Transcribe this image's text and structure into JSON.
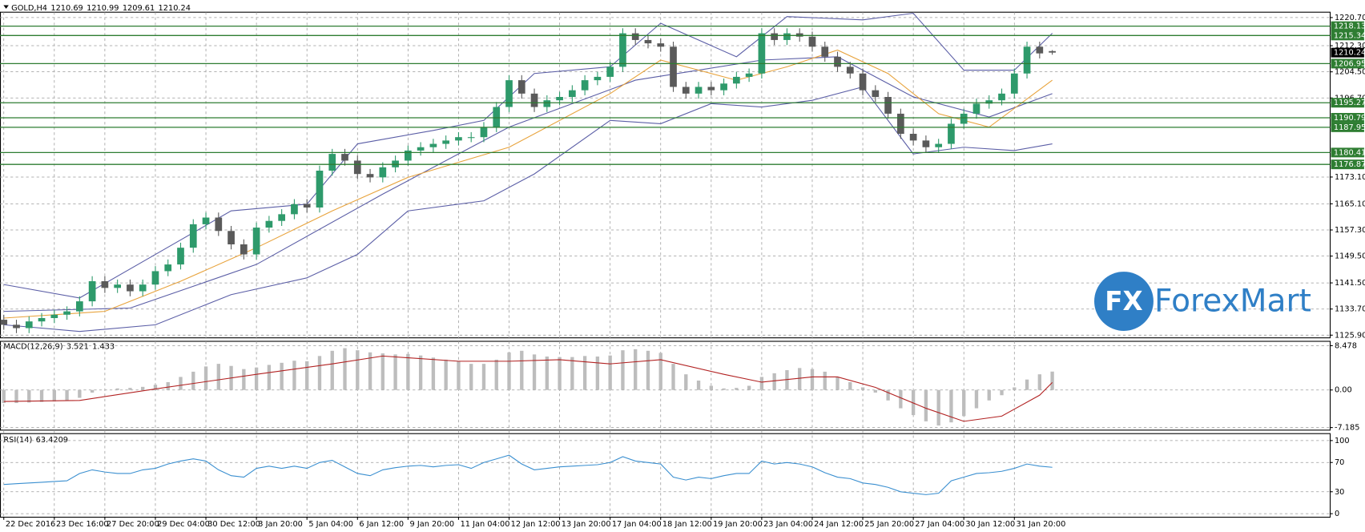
{
  "chart_data": [
    {
      "type": "candlestick",
      "title": "GOLD,H4",
      "candles": {
        "open": [
          1130.5,
          1129,
          1128,
          1130,
          1131,
          1132,
          1133,
          1136,
          1142,
          1140,
          1141,
          1139,
          1141,
          1145,
          1147,
          1152,
          1159,
          1161,
          1157,
          1153,
          1150,
          1158,
          1160,
          1162,
          1165,
          1164,
          1175,
          1180,
          1178,
          1174,
          1173,
          1176,
          1178,
          1181,
          1182,
          1183,
          1184,
          1185,
          1185,
          1188,
          1194,
          1202,
          1198,
          1194,
          1196,
          1197,
          1199,
          1202,
          1203,
          1206,
          1216,
          1214,
          1213,
          1212,
          1200,
          1198,
          1200,
          1199,
          1201,
          1203,
          1204,
          1216,
          1214,
          1216,
          1215,
          1212,
          1209,
          1206,
          1204,
          1199,
          1197,
          1192,
          1186,
          1184,
          1182,
          1183,
          1189,
          1192,
          1195,
          1196,
          1198,
          1204,
          1212,
          1210.69
        ],
        "high": [
          1132,
          1130.5,
          1131.5,
          1132.5,
          1133.5,
          1134.5,
          1137.5,
          1143.5,
          1143.5,
          1142.5,
          1142.5,
          1142.5,
          1146.5,
          1148.5,
          1153.5,
          1160.5,
          1162.5,
          1162.5,
          1158.5,
          1154.5,
          1159.5,
          1161.5,
          1163.5,
          1166.5,
          1166.5,
          1176.5,
          1181.5,
          1181.5,
          1179.5,
          1175.5,
          1177.5,
          1179.5,
          1182.5,
          1183.5,
          1184.5,
          1185.5,
          1186.5,
          1186.5,
          1189.5,
          1195.5,
          1203.5,
          1203.5,
          1199.5,
          1197.5,
          1198.5,
          1200.5,
          1203.5,
          1204.5,
          1207.5,
          1217.5,
          1217.5,
          1215.5,
          1214.5,
          1213.5,
          1201.5,
          1201.5,
          1201.5,
          1202.5,
          1204.5,
          1205.5,
          1217.5,
          1217.5,
          1217.5,
          1217.5,
          1216.5,
          1213.5,
          1210.5,
          1207.5,
          1205.5,
          1200.5,
          1198.5,
          1193.5,
          1187.5,
          1185.5,
          1184.5,
          1190.5,
          1193.5,
          1196.5,
          1197.5,
          1199.5,
          1205.5,
          1213.5,
          1213.5,
          1210.99
        ],
        "low": [
          1127.5,
          1126.5,
          1126.5,
          1128.5,
          1129.5,
          1130.5,
          1131.5,
          1134.5,
          1138.5,
          1138.5,
          1137.5,
          1137.5,
          1139.5,
          1143.5,
          1145.5,
          1150.5,
          1157.5,
          1155.5,
          1151.5,
          1148.5,
          1148.5,
          1156.5,
          1158.5,
          1160.5,
          1162.5,
          1162.5,
          1173.5,
          1176.5,
          1172.5,
          1171.5,
          1171.5,
          1174.5,
          1176.5,
          1179.5,
          1180.5,
          1181.5,
          1182.5,
          1183.5,
          1183.5,
          1186.5,
          1192.5,
          1196.5,
          1192.5,
          1192.5,
          1194.5,
          1195.5,
          1197.5,
          1200.5,
          1201.5,
          1204.5,
          1212.5,
          1211.5,
          1210.5,
          1198.5,
          1196.5,
          1196.5,
          1197.5,
          1197.5,
          1199.5,
          1201.5,
          1202.5,
          1212.5,
          1212.5,
          1213.5,
          1210.5,
          1207.5,
          1204.5,
          1202.5,
          1197.5,
          1195.5,
          1190.5,
          1184.5,
          1182.5,
          1180.5,
          1180.5,
          1181.5,
          1187.5,
          1190.5,
          1193.5,
          1194.5,
          1196.5,
          1202.5,
          1208.5,
          1209.61
        ],
        "close": [
          1129,
          1128,
          1130,
          1131,
          1132,
          1133,
          1136,
          1142,
          1140,
          1141,
          1139,
          1141,
          1145,
          1147,
          1152,
          1159,
          1161,
          1157,
          1153,
          1150,
          1158,
          1160,
          1162,
          1165,
          1164,
          1175,
          1180,
          1178,
          1174,
          1173,
          1176,
          1178,
          1181,
          1182,
          1183,
          1184,
          1185,
          1185,
          1188,
          1194,
          1202,
          1198,
          1194,
          1196,
          1197,
          1199,
          1202,
          1203,
          1206,
          1216,
          1214,
          1213,
          1212,
          1200,
          1198,
          1200,
          1199,
          1201,
          1203,
          1204,
          1216,
          1214,
          1216,
          1215,
          1212,
          1209,
          1206,
          1204,
          1199,
          1197,
          1192,
          1186,
          1184,
          1182,
          1183,
          1189,
          1192,
          1195,
          1196,
          1198,
          1204,
          1212,
          1210,
          1210.24
        ]
      },
      "up_color": "#2e9a6b",
      "down_color": "#5a5a5a",
      "overlays": [
        {
          "color": "#5b5ea6",
          "x": [
            0,
            6,
            12,
            18,
            24,
            28,
            34,
            38,
            42,
            48,
            52,
            58,
            62,
            68,
            72,
            76,
            80,
            83
          ],
          "values": [
            1141,
            1137,
            1150,
            1163,
            1165,
            1183,
            1187,
            1190,
            1204,
            1206,
            1219,
            1209,
            1221,
            1220,
            1222,
            1205,
            1205,
            1216
          ]
        },
        {
          "color": "#5b5ea6",
          "x": [
            0,
            6,
            12,
            18,
            24,
            28,
            32,
            38,
            42,
            48,
            52,
            56,
            60,
            64,
            68,
            72,
            76,
            80,
            83
          ],
          "values": [
            1129,
            1127,
            1129,
            1138,
            1143,
            1150,
            1163,
            1166,
            1174,
            1190,
            1189,
            1195,
            1194,
            1196,
            1200,
            1180,
            1182,
            1181,
            1183
          ]
        },
        {
          "color": "#5b5ea6",
          "x": [
            0,
            10,
            20,
            30,
            40,
            50,
            60,
            66,
            72,
            78,
            83
          ],
          "values": [
            1133,
            1134,
            1147,
            1168,
            1188,
            1202,
            1208,
            1209,
            1197,
            1191,
            1198
          ]
        },
        {
          "color": "#e8a33c",
          "x": [
            0,
            8,
            14,
            20,
            26,
            32,
            40,
            48,
            52,
            58,
            62,
            66,
            70,
            74,
            78,
            83
          ],
          "values": [
            1131,
            1133,
            1142,
            1152,
            1163,
            1173,
            1182,
            1198,
            1208,
            1202,
            1206,
            1211,
            1204,
            1192,
            1188,
            1202
          ]
        }
      ],
      "levels": [
        1218.13,
        1215.34,
        1206.95,
        1195.27,
        1190.79,
        1187.95,
        1180.41,
        1176.87
      ],
      "level_color": "#2e7d32",
      "xlim": [
        -0.3,
        105
      ],
      "xticks": [
        {
          "value": 0,
          "label": "22 Dec 2016"
        },
        {
          "value": 4,
          "label": "23 Dec 16:00"
        },
        {
          "value": 8,
          "label": "27 Dec 20:00"
        },
        {
          "value": 12,
          "label": "29 Dec 04:00"
        },
        {
          "value": 16,
          "label": "30 Dec 12:00"
        },
        {
          "value": 20,
          "label": "3 Jan 20:00"
        },
        {
          "value": 24,
          "label": "5 Jan 04:00"
        },
        {
          "value": 28,
          "label": "6 Jan 12:00"
        },
        {
          "value": 32,
          "label": "9 Jan 20:00"
        },
        {
          "value": 36,
          "label": "11 Jan 04:00"
        },
        {
          "value": 40,
          "label": "12 Jan 12:00"
        },
        {
          "value": 44,
          "label": "13 Jan 20:00"
        },
        {
          "value": 48,
          "label": "17 Jan 04:00"
        },
        {
          "value": 52,
          "label": "18 Jan 12:00"
        },
        {
          "value": 56,
          "label": "19 Jan 20:00"
        },
        {
          "value": 60,
          "label": "23 Jan 04:00"
        },
        {
          "value": 64,
          "label": "24 Jan 12:00"
        },
        {
          "value": 68,
          "label": "25 Jan 20:00"
        },
        {
          "value": 72,
          "label": "27 Jan 04:00"
        },
        {
          "value": 76,
          "label": "30 Jan 12:00"
        },
        {
          "value": 80,
          "label": "31 Jan 20:00"
        }
      ],
      "ylim": [
        1125.1,
        1222.3
      ],
      "yticks": [
        {
          "value": 1220.7,
          "label": "1220.70"
        },
        {
          "value": 1212.3,
          "label": "1212.30"
        },
        {
          "value": 1204.5,
          "label": "1204.50"
        },
        {
          "value": 1196.7,
          "label": "1196.70"
        },
        {
          "value": 1173.1,
          "label": "1173.10"
        },
        {
          "value": 1165.1,
          "label": "1165.10"
        },
        {
          "value": 1157.3,
          "label": "1157.30"
        },
        {
          "value": 1149.5,
          "label": "1149.50"
        },
        {
          "value": 1141.5,
          "label": "1141.50"
        },
        {
          "value": 1133.7,
          "label": "1133.70"
        },
        {
          "value": 1125.9,
          "label": "1125.90"
        }
      ],
      "grid": true
    },
    {
      "type": "macd",
      "title": "MACD(12,26,9)",
      "histogram": {
        "color": "#bdbdbd",
        "values": [
          -2.5,
          -2.5,
          -2.4,
          -2.3,
          -2.2,
          -2.0,
          -1.5,
          -0.5,
          0.0,
          0.3,
          0.4,
          0.6,
          1.0,
          1.5,
          2.5,
          3.5,
          4.5,
          5.0,
          4.6,
          4.0,
          4.3,
          4.8,
          5.2,
          5.6,
          5.5,
          6.5,
          7.5,
          8.0,
          7.6,
          7.2,
          7.0,
          6.8,
          6.9,
          6.6,
          6.2,
          5.8,
          5.5,
          5.0,
          5.0,
          5.8,
          7.2,
          7.5,
          6.8,
          6.4,
          6.3,
          6.3,
          6.5,
          6.4,
          6.6,
          7.6,
          7.8,
          7.5,
          7.1,
          5.0,
          3.0,
          1.8,
          0.8,
          0.3,
          0.4,
          0.8,
          2.5,
          3.2,
          3.8,
          4.2,
          4.0,
          3.5,
          2.5,
          1.5,
          0.5,
          -0.5,
          -2.0,
          -3.5,
          -4.8,
          -6.0,
          -6.8,
          -6.2,
          -5.0,
          -3.5,
          -2.0,
          -1.0,
          0.5,
          2.0,
          3.0,
          3.521
        ]
      },
      "signal": {
        "color": "#b22222",
        "x": [
          0,
          6,
          12,
          20,
          26,
          30,
          36,
          40,
          44,
          48,
          52,
          57,
          60,
          64,
          66,
          69,
          73,
          76,
          79,
          82,
          83
        ],
        "values": [
          -2.2,
          -2.0,
          0.2,
          3.0,
          5.0,
          6.5,
          5.5,
          5.5,
          5.8,
          5.0,
          5.8,
          3.0,
          1.5,
          2.5,
          2.5,
          0.5,
          -3.5,
          -6.0,
          -5.0,
          -1.0,
          1.433
        ]
      },
      "ylim": [
        -7.68,
        9.31
      ],
      "yticks": [
        8.478,
        {
          "value": 0,
          "label": "0.00"
        },
        -7.185
      ],
      "grid": true
    },
    {
      "type": "line",
      "title": "RSI(14)",
      "series": [
        {
          "color": "#3a8fd0",
          "values": [
            40,
            41,
            42,
            43,
            44,
            45,
            55,
            60,
            57,
            55,
            55,
            60,
            62,
            68,
            72,
            75,
            72,
            60,
            52,
            50,
            62,
            65,
            62,
            65,
            62,
            70,
            73,
            64,
            55,
            52,
            60,
            63,
            65,
            66,
            64,
            66,
            67,
            62,
            70,
            75,
            80,
            68,
            60,
            62,
            64,
            65,
            66,
            67,
            70,
            78,
            72,
            70,
            68,
            50,
            46,
            50,
            48,
            52,
            55,
            55,
            72,
            68,
            70,
            68,
            64,
            56,
            50,
            48,
            42,
            40,
            36,
            30,
            28,
            26,
            28,
            45,
            50,
            55,
            56,
            58,
            62,
            68,
            65,
            63.4209
          ]
        }
      ],
      "ylim": [
        -4.8,
        109.5
      ],
      "yticks": [
        100,
        70,
        30,
        0
      ],
      "grid": true
    }
  ],
  "logo": {
    "mark": "FX",
    "name": "ForexMart"
  }
}
